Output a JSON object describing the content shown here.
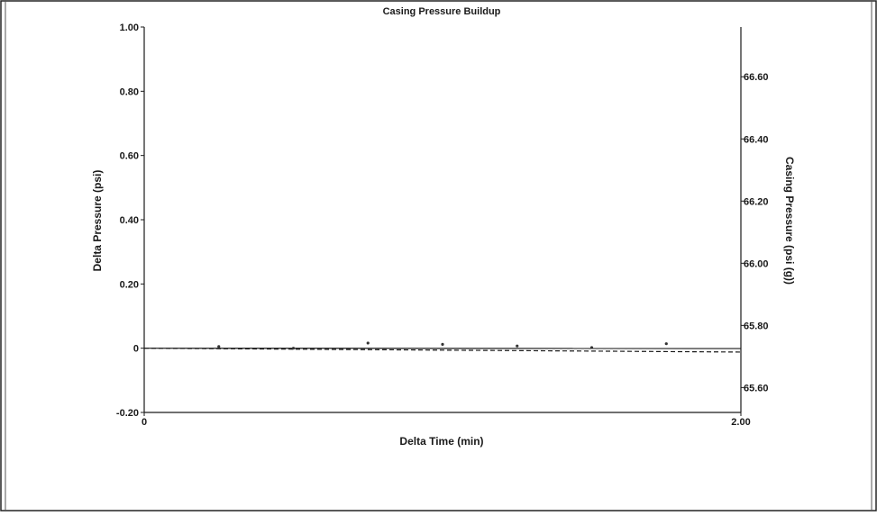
{
  "chart_data": {
    "type": "scatter",
    "title": "Casing Pressure Buildup",
    "xlabel": "Delta Time (min)",
    "ylabel": "Delta Pressure (psi)",
    "y2label": "Casing Pressure (psi (g))",
    "xlim": [
      0,
      2.0
    ],
    "ylim": [
      -0.2,
      1.0
    ],
    "y2lim": [
      65.52,
      66.76
    ],
    "x_ticks": [
      "0",
      "2.00"
    ],
    "y_ticks": [
      "-0.20",
      "0",
      "0.20",
      "0.40",
      "0.60",
      "0.80",
      "1.00"
    ],
    "y2_ticks": [
      "65.60",
      "65.80",
      "66.00",
      "66.20",
      "66.40",
      "66.60"
    ],
    "grid": false,
    "legend": "none",
    "series": [
      {
        "style": "points",
        "axis": "left",
        "x": [
          0.25,
          0.5,
          0.75,
          1.0,
          1.25,
          1.5,
          1.75
        ],
        "values": [
          0.005,
          0.0,
          0.016,
          0.012,
          0.007,
          0.002,
          0.014
        ]
      },
      {
        "style": "solid-line",
        "axis": "left",
        "x": [
          0,
          2.0
        ],
        "values": [
          0.0,
          -0.001
        ]
      },
      {
        "style": "dashed-line",
        "axis": "left",
        "x": [
          0,
          2.0
        ],
        "values": [
          0.0,
          -0.012
        ]
      }
    ]
  },
  "colors": {
    "axis": "#1a1a1a",
    "points": "#333333",
    "border": "#222222"
  }
}
